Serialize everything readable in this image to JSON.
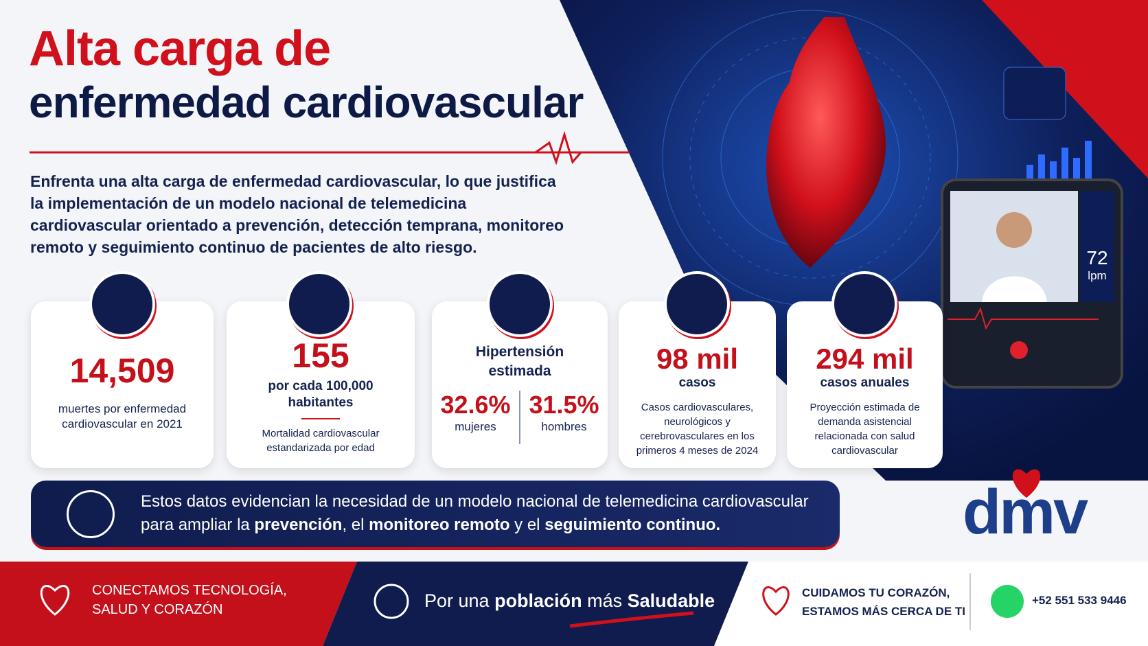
{
  "header": {
    "title_line1": "Alta carga de",
    "title_line2": "enfermedad cardiovascular"
  },
  "intro": "Enfrenta una alta carga de enfermedad cardiovascular, lo que justifica la implementación de un modelo nacional de telemedicina cardiovascular orientado a prevención, detección temprana, monitoreo remoto y seguimiento continuo de pacientes de alto riesgo.",
  "stats": [
    {
      "value": "14,509",
      "label": "muertes por enfermedad cardiovascular en 2021"
    },
    {
      "value": "155",
      "sub": "por cada 100,000 habitantes",
      "label": "Mortalidad cardiovascular estandarizada por edad"
    },
    {
      "title": "Hipertensión estimada",
      "items": [
        {
          "value": "32.6%",
          "label": "mujeres"
        },
        {
          "value": "31.5%",
          "label": "hombres"
        }
      ]
    },
    {
      "value": "98 mil",
      "sub": "casos",
      "label": "Casos cardiovasculares, neurológicos y cerebrovasculares en los primeros 4 meses de 2024"
    },
    {
      "value": "294 mil",
      "sub": "casos anuales",
      "label": "Proyección estimada de demanda asistencial relacionada con salud cardiovascular"
    }
  ],
  "banner": {
    "line1": "Estos datos evidencian la necesidad de un modelo nacional de telemedicina cardiovascular",
    "line2": [
      "para ampliar la ",
      "prevención",
      ", el ",
      "monitoreo remoto",
      " y el ",
      "seguimiento continuo."
    ]
  },
  "tablet": {
    "bpm": "72",
    "unit": "lpm"
  },
  "logo": "dmv",
  "footer": {
    "left": [
      "CONECTAMOS TECNOLOGÍA,",
      "SALUD Y CORAZÓN"
    ],
    "middle": [
      "Por una ",
      "población",
      " más ",
      "Saludable"
    ],
    "right": [
      "CUIDAMOS TU CORAZÓN,",
      "ESTAMOS MÁS CERCA DE TI"
    ],
    "phone": "+52 551 533 9446"
  }
}
